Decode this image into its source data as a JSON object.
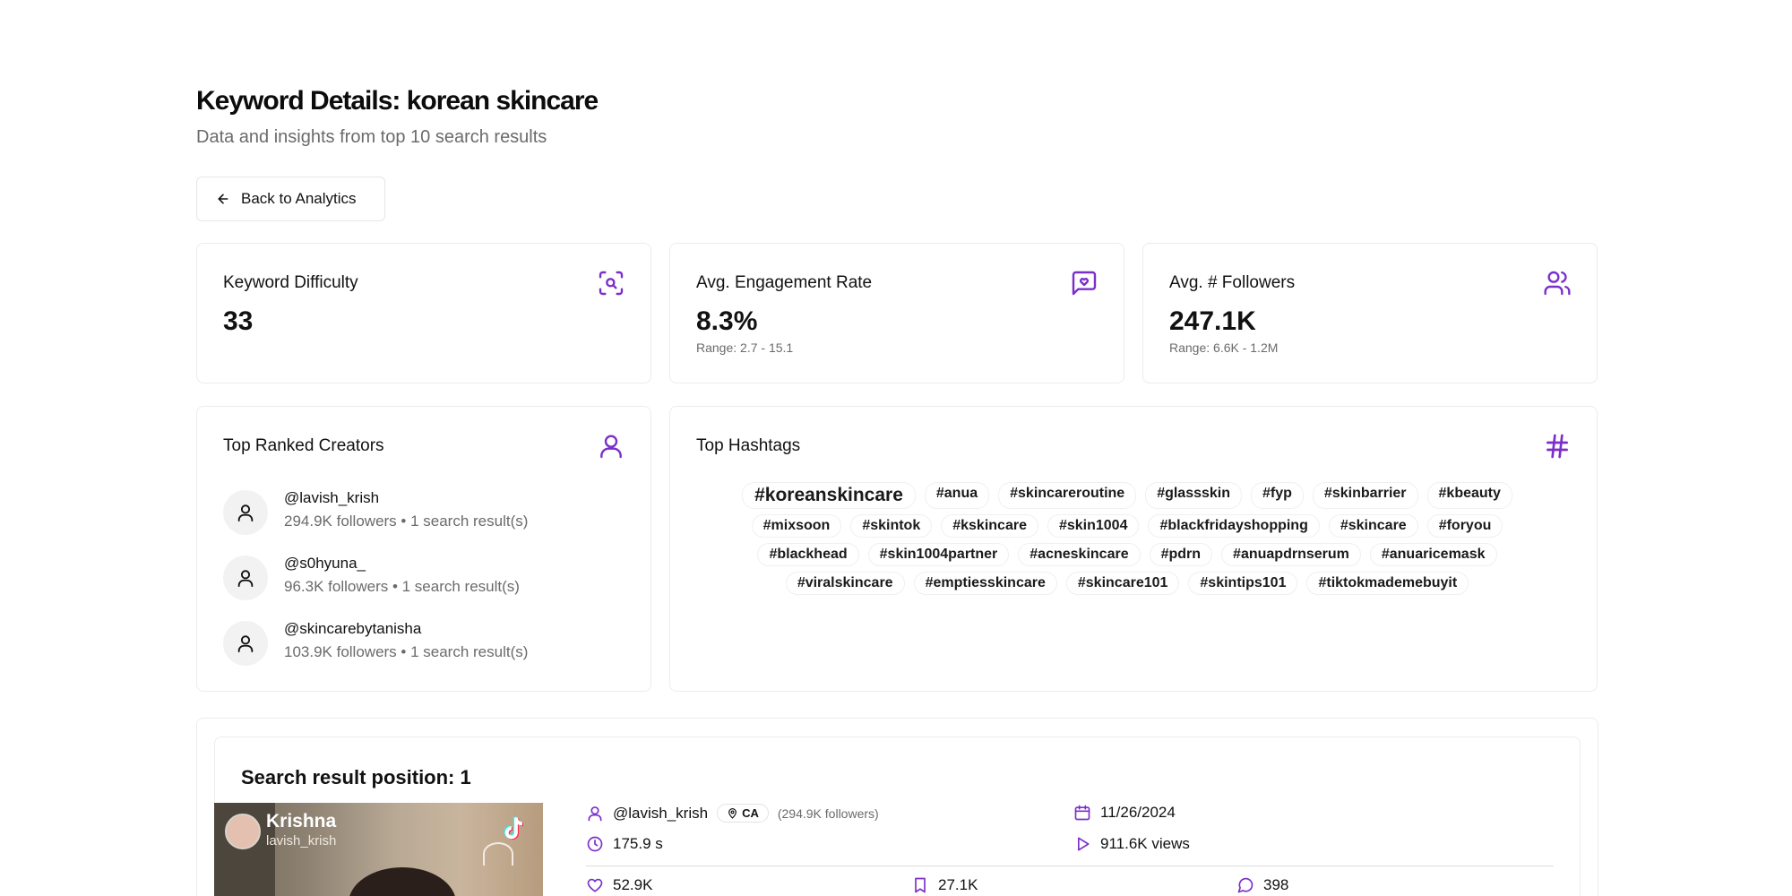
{
  "header": {
    "title": "Keyword Details: korean skincare",
    "subtitle": "Data and insights from top 10 search results"
  },
  "back_button": {
    "label": "Back to Analytics"
  },
  "stats": [
    {
      "title": "Keyword Difficulty",
      "value": "33",
      "range": "",
      "icon": "search-scan-icon"
    },
    {
      "title": "Avg. Engagement Rate",
      "value": "8.3%",
      "range": "Range: 2.7 - 15.1",
      "icon": "message-heart-icon"
    },
    {
      "title": "Avg. # Followers",
      "value": "247.1K",
      "range": "Range: 6.6K - 1.2M",
      "icon": "users-icon"
    }
  ],
  "creators": {
    "title": "Top Ranked Creators",
    "icon": "user-icon",
    "items": [
      {
        "handle": "@lavish_krish",
        "meta": "294.9K followers • 1 search result(s)"
      },
      {
        "handle": "@s0hyuna_",
        "meta": "96.3K followers • 1 search result(s)"
      },
      {
        "handle": "@skincarebytanisha",
        "meta": "103.9K followers • 1 search result(s)"
      }
    ]
  },
  "hashtags": {
    "title": "Top Hashtags",
    "icon": "hash-icon",
    "rows": [
      [
        "#koreanskincare",
        "#anua",
        "#skincareroutine",
        "#glassskin",
        "#fyp",
        "#skinbarrier",
        "#kbeauty"
      ],
      [
        "#mixsoon",
        "#skintok",
        "#kskincare",
        "#skin1004",
        "#blackfridayshopping",
        "#skincare",
        "#foryou"
      ],
      [
        "#blackhead",
        "#skin1004partner",
        "#acneskincare",
        "#pdrn",
        "#anuapdrnserum",
        "#anuaricemask"
      ],
      [
        "#viralskincare",
        "#emptiesskincare",
        "#skincare101",
        "#skintips101",
        "#tiktokmademebuyit"
      ]
    ]
  },
  "result": {
    "title": "Search result position: 1",
    "thumbnail": {
      "name": "Krishna",
      "handle": "lavish_krish"
    },
    "handle": "@lavish_krish",
    "country": "CA",
    "followers": "(294.9K followers)",
    "date": "11/26/2024",
    "duration": "175.9 s",
    "views": "911.6K views",
    "likes": "52.9K",
    "saves": "27.1K",
    "comments": "398"
  },
  "colors": {
    "accent": "#7b2fc9",
    "border": "#ececec",
    "muted": "#6b6b6b"
  }
}
